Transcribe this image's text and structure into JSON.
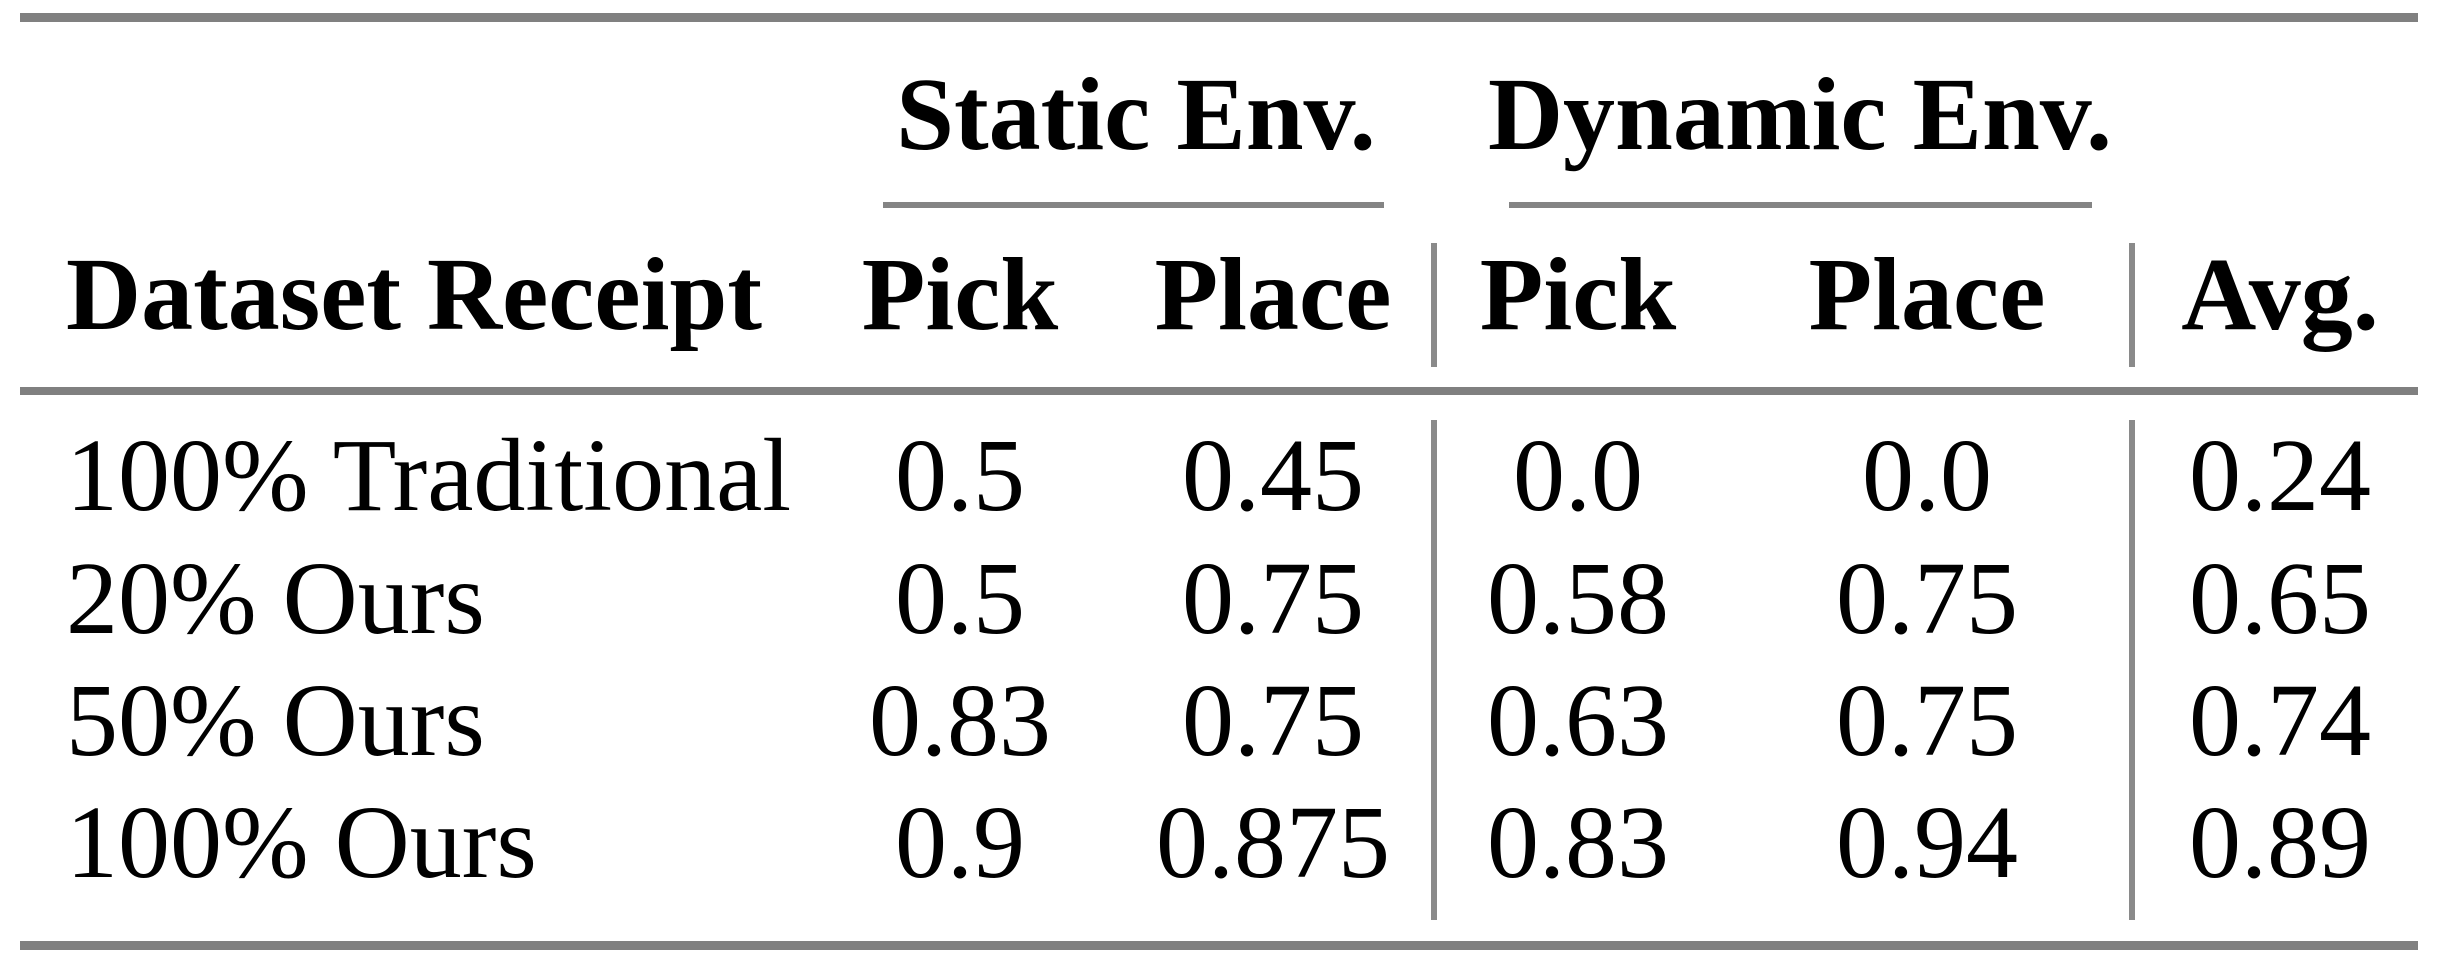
{
  "table": {
    "groups": [
      {
        "label": "Static Env."
      },
      {
        "label": "Dynamic Env."
      }
    ],
    "columns": {
      "row_header": "Dataset Receipt",
      "static": [
        "Pick",
        "Place"
      ],
      "dynamic": [
        "Pick",
        "Place"
      ],
      "avg": "Avg."
    },
    "rows": [
      {
        "label": "100% Traditional",
        "cells": [
          "0.5",
          "0.45",
          "0.0",
          "0.0",
          "0.24"
        ]
      },
      {
        "label": "20% Ours",
        "cells": [
          "0.5",
          "0.75",
          "0.58",
          "0.75",
          "0.65"
        ]
      },
      {
        "label": "50% Ours",
        "cells": [
          "0.83",
          "0.75",
          "0.63",
          "0.75",
          "0.74"
        ]
      },
      {
        "label": "100% Ours",
        "cells": [
          "0.9",
          "0.875",
          "0.83",
          "0.94",
          "0.89"
        ]
      }
    ],
    "colors": {
      "rule_gray": "#808080",
      "divider_gray": "#8a8a8a",
      "text": "#000000",
      "background": "#ffffff"
    }
  }
}
